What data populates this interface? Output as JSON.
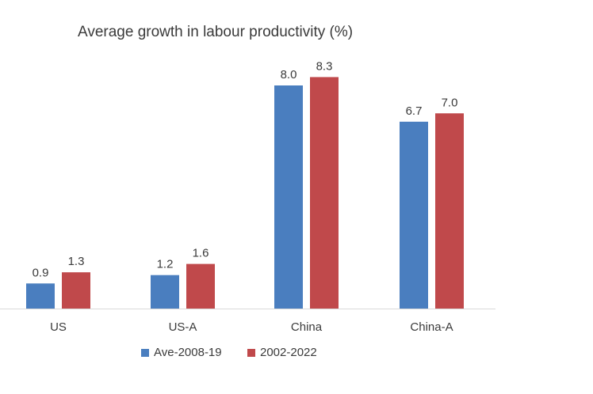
{
  "chart_data": {
    "type": "bar",
    "title": "Average growth in labour productivity (%)",
    "xlabel": "",
    "ylabel": "",
    "categories": [
      "US",
      "US-A",
      "China",
      "China-A"
    ],
    "series": [
      {
        "name": "Ave-2008-19",
        "color": "#4a7ebf",
        "values": [
          0.9,
          1.2,
          8.0,
          6.7
        ]
      },
      {
        "name": "2002-2022",
        "color": "#c0494b",
        "values": [
          1.3,
          1.6,
          8.3,
          7.0
        ]
      }
    ],
    "value_labels": [
      [
        "0.9",
        "1.2",
        "8.0",
        "6.7"
      ],
      [
        "1.3",
        "1.6",
        "8.3",
        "7.0"
      ]
    ],
    "ylim": [
      0,
      9
    ],
    "grid": false,
    "y_axis_visible": false,
    "legend_position": "bottom",
    "colors": {
      "axis": "#d9d9d9",
      "text": "#3a3a3a"
    }
  }
}
